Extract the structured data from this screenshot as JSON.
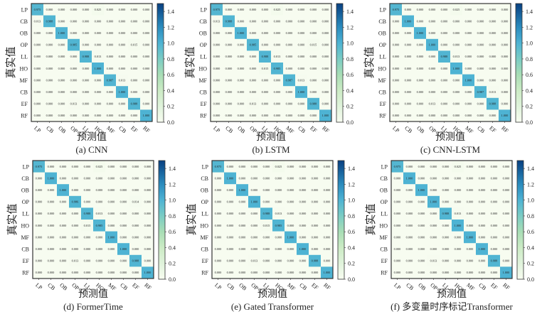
{
  "chart_data": [
    {
      "type": "heatmap",
      "title": "(a) CNN",
      "xlabel": "预测值",
      "ylabel": "真实值",
      "x_categories": [
        "LP",
        "CB",
        "OB",
        "OP",
        "LL",
        "HO",
        "MF",
        "CB",
        "EF",
        "RF"
      ],
      "y_categories": [
        "LP",
        "CB",
        "OB",
        "OP",
        "LL",
        "HO",
        "MF",
        "CB",
        "EF",
        "RF"
      ],
      "colorbar": {
        "range": [
          0,
          1.5
        ],
        "ticks": [
          "0.0",
          "0.2",
          "0.4",
          "0.6",
          "0.8",
          "1.0",
          "1.2",
          "1.4"
        ],
        "colormap": "GnBu"
      },
      "matrix": [
        [
          0.975,
          0,
          0,
          0,
          0,
          0.025,
          0,
          0,
          0,
          0
        ],
        [
          0.013,
          0.988,
          0,
          0,
          0,
          0,
          0,
          0,
          0,
          0
        ],
        [
          0,
          0,
          1,
          0,
          0,
          0,
          0,
          0,
          0,
          0
        ],
        [
          0,
          0,
          0,
          0.985,
          0,
          0,
          0,
          0,
          0.015,
          0
        ],
        [
          0,
          0,
          0,
          0,
          0.988,
          0.013,
          0,
          0,
          0,
          0
        ],
        [
          0,
          0,
          0,
          0,
          0,
          1,
          0,
          0,
          0,
          0
        ],
        [
          0,
          0,
          0,
          0,
          0,
          0,
          0.987,
          0.013,
          0,
          0
        ],
        [
          0,
          0,
          0,
          0,
          0,
          0,
          0,
          1,
          0,
          0
        ],
        [
          0,
          0,
          0,
          0.013,
          0,
          0,
          0,
          0,
          0.988,
          0
        ],
        [
          0,
          0,
          0,
          0,
          0,
          0,
          0,
          0,
          0,
          1
        ]
      ]
    },
    {
      "type": "heatmap",
      "title": "(b) LSTM",
      "xlabel": "预测值",
      "ylabel": "真实值",
      "x_categories": [
        "LP",
        "CB",
        "OB",
        "OP",
        "LL",
        "HO",
        "MF",
        "CB",
        "EF",
        "RF"
      ],
      "y_categories": [
        "LP",
        "CB",
        "OB",
        "OP",
        "LL",
        "HO",
        "MF",
        "CB",
        "EF",
        "RF"
      ],
      "colorbar": {
        "range": [
          0,
          1.5
        ],
        "ticks": [
          "0.0",
          "0.2",
          "0.4",
          "0.6",
          "0.8",
          "1.0",
          "1.2",
          "1.4"
        ],
        "colormap": "GnBu"
      },
      "matrix": [
        [
          0.975,
          0,
          0,
          0,
          0,
          0.025,
          0,
          0,
          0,
          0
        ],
        [
          0.013,
          0.988,
          0,
          0,
          0,
          0,
          0,
          0,
          0,
          0
        ],
        [
          0,
          0,
          1,
          0,
          0,
          0,
          0,
          0,
          0,
          0
        ],
        [
          0,
          0,
          0,
          0.985,
          0,
          0,
          0,
          0,
          0.015,
          0
        ],
        [
          0,
          0,
          0,
          0,
          0.988,
          0.013,
          0,
          0,
          0,
          0
        ],
        [
          0,
          0,
          0,
          0,
          0.015,
          0.985,
          0,
          0,
          0,
          0
        ],
        [
          0,
          0,
          0,
          0,
          0,
          0,
          0.987,
          0.013,
          0,
          0
        ],
        [
          0,
          0,
          0,
          0,
          0,
          0,
          0,
          1,
          0,
          0
        ],
        [
          0,
          0,
          0,
          0.013,
          0,
          0,
          0,
          0,
          0.988,
          0
        ],
        [
          0,
          0,
          0,
          0,
          0,
          0,
          0,
          0,
          0,
          1
        ]
      ]
    },
    {
      "type": "heatmap",
      "title": "(c) CNN-LSTM",
      "xlabel": "预测值",
      "ylabel": "真实值",
      "x_categories": [
        "LP",
        "CB",
        "OB",
        "OP",
        "LL",
        "HO",
        "MF",
        "CB",
        "EF",
        "RF"
      ],
      "y_categories": [
        "LP",
        "CB",
        "OB",
        "OP",
        "LL",
        "HO",
        "MF",
        "CB",
        "EF",
        "RF"
      ],
      "colorbar": {
        "range": [
          0,
          1.5
        ],
        "ticks": [
          "0.0",
          "0.2",
          "0.4",
          "0.6",
          "0.8",
          "1.0",
          "1.2",
          "1.4"
        ],
        "colormap": "GnBu"
      },
      "matrix": [
        [
          0.975,
          0,
          0,
          0,
          0,
          0.025,
          0,
          0,
          0,
          0
        ],
        [
          0,
          1,
          0,
          0,
          0,
          0,
          0,
          0,
          0,
          0
        ],
        [
          0,
          0,
          1,
          0,
          0,
          0,
          0,
          0,
          0,
          0
        ],
        [
          0,
          0,
          0,
          1,
          0,
          0,
          0,
          0,
          0,
          0
        ],
        [
          0,
          0,
          0,
          0,
          0.988,
          0.013,
          0,
          0,
          0,
          0
        ],
        [
          0,
          0,
          0,
          0,
          0,
          1,
          0,
          0,
          0,
          0
        ],
        [
          0,
          0,
          0,
          0,
          0,
          0,
          1,
          0,
          0,
          0
        ],
        [
          0,
          0,
          0,
          0,
          0,
          0,
          0,
          0.987,
          0.013,
          0
        ],
        [
          0,
          0,
          0,
          0.013,
          0,
          0,
          0,
          0,
          0.988,
          0
        ],
        [
          0,
          0,
          0,
          0,
          0,
          0,
          0,
          0,
          0,
          1
        ]
      ]
    },
    {
      "type": "heatmap",
      "title": "(d) FormerTime",
      "xlabel": "预测值",
      "ylabel": "真实值",
      "x_categories": [
        "LP",
        "CB",
        "OB",
        "OP",
        "LL",
        "HO",
        "MF",
        "CB",
        "EF",
        "RF"
      ],
      "y_categories": [
        "LP",
        "CB",
        "OB",
        "OP",
        "LL",
        "HO",
        "MF",
        "CB",
        "EF",
        "RF"
      ],
      "colorbar": {
        "range": [
          0,
          1.5
        ],
        "ticks": [
          "0.0",
          "0.2",
          "0.4",
          "0.6",
          "0.8",
          "1.0",
          "1.2",
          "1.4"
        ],
        "colormap": "GnBu"
      },
      "matrix": [
        [
          0.975,
          0,
          0,
          0,
          0,
          0.025,
          0,
          0,
          0,
          0
        ],
        [
          0,
          1,
          0,
          0,
          0,
          0,
          0,
          0,
          0,
          0
        ],
        [
          0,
          0,
          1,
          0,
          0,
          0,
          0,
          0,
          0,
          0
        ],
        [
          0,
          0,
          0,
          0.986,
          0,
          0,
          0,
          0,
          0.014,
          0
        ],
        [
          0,
          0,
          0,
          0,
          0.988,
          0.013,
          0,
          0,
          0,
          0
        ],
        [
          0,
          0,
          0,
          0,
          0.015,
          0.985,
          0,
          0,
          0,
          0
        ],
        [
          0,
          0,
          0,
          0,
          0,
          0,
          1,
          0,
          0,
          0
        ],
        [
          0,
          0,
          0,
          0,
          0,
          0,
          0,
          1,
          0,
          0
        ],
        [
          0,
          0,
          0,
          0.013,
          0,
          0,
          0,
          0,
          0.988,
          0
        ],
        [
          0,
          0,
          0,
          0,
          0,
          0,
          0,
          0,
          0,
          1
        ]
      ]
    },
    {
      "type": "heatmap",
      "title": "(e) Gated Transformer",
      "xlabel": "预测值",
      "ylabel": "真实值",
      "x_categories": [
        "LP",
        "CB",
        "OB",
        "OP",
        "LL",
        "HO",
        "MF",
        "CB",
        "EF",
        "RF"
      ],
      "y_categories": [
        "LP",
        "CB",
        "OB",
        "OP",
        "LL",
        "HO",
        "MF",
        "CB",
        "EF",
        "RF"
      ],
      "colorbar": {
        "range": [
          0,
          1.5
        ],
        "ticks": [
          "0.0",
          "0.2",
          "0.4",
          "0.6",
          "0.8",
          "1.0",
          "1.2",
          "1.4"
        ],
        "colormap": "GnBu"
      },
      "matrix": [
        [
          0.975,
          0,
          0,
          0,
          0,
          0.025,
          0,
          0,
          0,
          0
        ],
        [
          0,
          1,
          0,
          0,
          0,
          0,
          0,
          0,
          0,
          0
        ],
        [
          0,
          0,
          1,
          0,
          0,
          0,
          0,
          0,
          0,
          0
        ],
        [
          0,
          0,
          0,
          1,
          0,
          0,
          0,
          0,
          0,
          0
        ],
        [
          0,
          0,
          0,
          0,
          0.988,
          0.013,
          0,
          0,
          0,
          0
        ],
        [
          0,
          0,
          0,
          0,
          0.015,
          0.985,
          0,
          0,
          0,
          0
        ],
        [
          0,
          0,
          0,
          0,
          0,
          0,
          1,
          0,
          0,
          0
        ],
        [
          0,
          0,
          0,
          0,
          0,
          0,
          0,
          1,
          0,
          0
        ],
        [
          0,
          0,
          0,
          0.013,
          0,
          0,
          0,
          0,
          0.988,
          0
        ],
        [
          0,
          0,
          0,
          0,
          0,
          0,
          0,
          0,
          0,
          1
        ]
      ]
    },
    {
      "type": "heatmap",
      "title": "(f) 多变量时序标记Transformer",
      "xlabel": "预测值",
      "ylabel": "真实值",
      "x_categories": [
        "LP",
        "CB",
        "OB",
        "OP",
        "LL",
        "HO",
        "MF",
        "CB",
        "EF",
        "RF"
      ],
      "y_categories": [
        "LP",
        "CB",
        "OB",
        "OP",
        "LL",
        "HO",
        "MF",
        "CB",
        "EF",
        "RF"
      ],
      "colorbar": {
        "range": [
          0,
          1.5
        ],
        "ticks": [
          "0.0",
          "0.2",
          "0.4",
          "0.6",
          "0.8",
          "1.0",
          "1.2",
          "1.4"
        ],
        "colormap": "GnBu"
      },
      "matrix": [
        [
          0.975,
          0,
          0,
          0,
          0,
          0.025,
          0,
          0,
          0,
          0
        ],
        [
          0,
          1,
          0,
          0,
          0,
          0,
          0,
          0,
          0,
          0
        ],
        [
          0,
          0,
          1,
          0,
          0,
          0,
          0,
          0,
          0,
          0
        ],
        [
          0,
          0,
          0,
          1,
          0,
          0,
          0,
          0,
          0,
          0
        ],
        [
          0,
          0,
          0,
          0,
          0.988,
          0.013,
          0,
          0,
          0,
          0
        ],
        [
          0,
          0,
          0,
          0,
          0,
          1,
          0,
          0,
          0,
          0
        ],
        [
          0,
          0,
          0,
          0,
          0,
          0,
          1,
          0,
          0,
          0
        ],
        [
          0,
          0,
          0,
          0,
          0,
          0,
          0,
          1,
          0,
          0
        ],
        [
          0,
          0,
          0,
          0.013,
          0,
          0,
          0,
          0,
          0.988,
          0
        ],
        [
          0,
          0,
          0,
          0,
          0,
          0,
          0,
          0,
          0,
          1
        ]
      ]
    }
  ]
}
